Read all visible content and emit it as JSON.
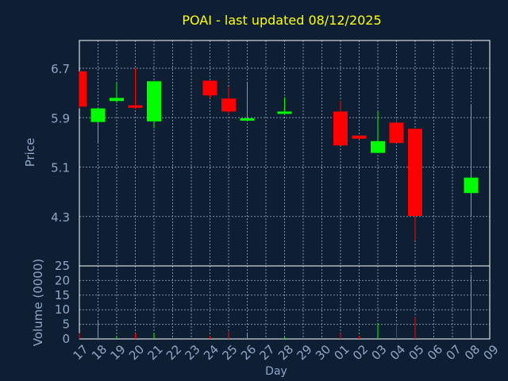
{
  "chart_data": {
    "type": "candlestick",
    "title": "POAI - last updated 08/12/2025",
    "xlabel": "Day",
    "ylabel": "Price",
    "volume_label": "Volume (0000)",
    "grid": true,
    "colors": {
      "background": "#0f1f33",
      "frame": "#ffffff",
      "title": "#ffff00",
      "axis_text": "#8fa8c8",
      "up": "#00ff00",
      "down": "#ff0000",
      "grid": "#7f8fa5"
    },
    "categories": [
      "17",
      "18",
      "19",
      "20",
      "21",
      "22",
      "23",
      "24",
      "25",
      "26",
      "27",
      "28",
      "29",
      "30",
      "01",
      "02",
      "03",
      "04",
      "05",
      "06",
      "07",
      "08",
      "09"
    ],
    "price_axis": {
      "ylim": [
        3.5,
        7.15
      ],
      "ticks": [
        "6.7",
        "5.9",
        "5.1",
        "4.3"
      ]
    },
    "volume_axis": {
      "ylim": [
        0,
        25
      ],
      "ticks": [
        "25",
        "20",
        "15",
        "10",
        "5",
        "0"
      ]
    },
    "candles": [
      {
        "day": "17",
        "open": 6.65,
        "close": 6.08,
        "high": 6.65,
        "low": 6.05,
        "volume": 2.0
      },
      {
        "day": "18",
        "open": 5.83,
        "close": 6.05,
        "high": 6.07,
        "low": 5.49,
        "volume": 6.0
      },
      {
        "day": "19",
        "open": 6.17,
        "close": 6.22,
        "high": 6.47,
        "low": 6.14,
        "volume": 1.0
      },
      {
        "day": "20",
        "open": 6.1,
        "close": 6.06,
        "high": 6.7,
        "low": 6.04,
        "volume": 2.0
      },
      {
        "day": "21",
        "open": 5.84,
        "close": 6.49,
        "high": 6.49,
        "low": 5.73,
        "volume": 2.0
      },
      {
        "day": "24",
        "open": 6.5,
        "close": 6.26,
        "high": 6.5,
        "low": 6.22,
        "volume": 1.0
      },
      {
        "day": "25",
        "open": 6.21,
        "close": 6.0,
        "high": 6.4,
        "low": 5.95,
        "volume": 2.5
      },
      {
        "day": "26",
        "open": 5.86,
        "close": 5.89,
        "high": 6.48,
        "low": 5.86,
        "volume": 2.0
      },
      {
        "day": "28",
        "open": 5.98,
        "close": 6.0,
        "high": 6.23,
        "low": 5.96,
        "volume": 0.5
      },
      {
        "day": "01",
        "open": 6.0,
        "close": 5.45,
        "high": 6.18,
        "low": 5.45,
        "volume": 2.0
      },
      {
        "day": "02",
        "open": 5.61,
        "close": 5.56,
        "high": 5.61,
        "low": 5.55,
        "volume": 1.0
      },
      {
        "day": "03",
        "open": 5.33,
        "close": 5.52,
        "high": 6.0,
        "low": 5.33,
        "volume": 5.5
      },
      {
        "day": "04",
        "open": 5.82,
        "close": 5.49,
        "high": 5.9,
        "low": 5.49,
        "volume": 5.5
      },
      {
        "day": "05",
        "open": 5.72,
        "close": 4.31,
        "high": 5.72,
        "low": 3.91,
        "volume": 7.5
      },
      {
        "day": "08",
        "open": 4.68,
        "close": 4.93,
        "high": 6.1,
        "low": 4.3,
        "volume": 22.0
      }
    ]
  }
}
